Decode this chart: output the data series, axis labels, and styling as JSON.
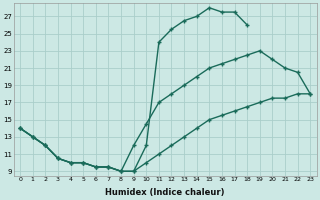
{
  "xlabel": "Humidex (Indice chaleur)",
  "bg_color": "#cce8e4",
  "grid_color": "#aaceca",
  "line_color": "#1a6b5a",
  "ylim": [
    8.5,
    28.5
  ],
  "xlim": [
    -0.5,
    23.5
  ],
  "yticks": [
    9,
    11,
    13,
    15,
    17,
    19,
    21,
    23,
    25,
    27
  ],
  "xticks": [
    0,
    1,
    2,
    3,
    4,
    5,
    6,
    7,
    8,
    9,
    10,
    11,
    12,
    13,
    14,
    15,
    16,
    17,
    18,
    19,
    20,
    21,
    22,
    23
  ],
  "line1_x": [
    0,
    1,
    2,
    3,
    4,
    5,
    6,
    7,
    8,
    9,
    10,
    11,
    12,
    13,
    14,
    15,
    16,
    17,
    18
  ],
  "line1_y": [
    14,
    13,
    12,
    10.5,
    10,
    10,
    9.5,
    9.5,
    9,
    9,
    12,
    24,
    25.5,
    26.5,
    27,
    28,
    27.5,
    27.5,
    26
  ],
  "line2_x": [
    0,
    1,
    2,
    3,
    4,
    5,
    6,
    7,
    8,
    9,
    10,
    11,
    12,
    13,
    14,
    15,
    16,
    17,
    18,
    19,
    20,
    21,
    22,
    23
  ],
  "line2_y": [
    14,
    13,
    12,
    10.5,
    10,
    10,
    9.5,
    9.5,
    9,
    12,
    14.5,
    17,
    18,
    19,
    20,
    21,
    21.5,
    22,
    22.5,
    23,
    22,
    21,
    20.5,
    18
  ],
  "line3_x": [
    0,
    1,
    2,
    3,
    4,
    5,
    6,
    7,
    8,
    9,
    10,
    11,
    12,
    13,
    14,
    15,
    16,
    17,
    18,
    19,
    20,
    21,
    22,
    23
  ],
  "line3_y": [
    14,
    13,
    12,
    10.5,
    10,
    10,
    9.5,
    9.5,
    9,
    9,
    10,
    11,
    12,
    13,
    14,
    15,
    15.5,
    16,
    16.5,
    17,
    17.5,
    17.5,
    18,
    18
  ]
}
